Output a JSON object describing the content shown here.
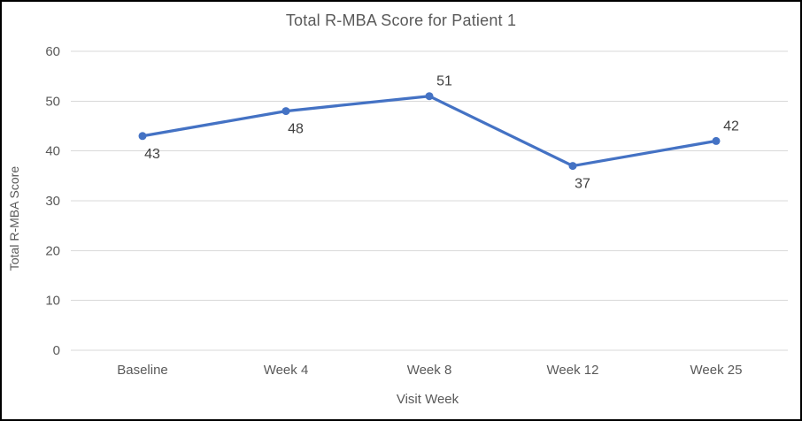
{
  "chart_data": {
    "type": "line",
    "title": "Total R-MBA Score for Patient 1",
    "xlabel": "Visit Week",
    "ylabel": "Total R-MBA Score",
    "categories": [
      "Baseline",
      "Week 4",
      "Week 8",
      "Week 12",
      "Week 25"
    ],
    "series": [
      {
        "name": "Total R-MBA Score",
        "values": [
          43,
          48,
          51,
          37,
          42
        ]
      }
    ],
    "data_labels": [
      43,
      48,
      51,
      37,
      42
    ],
    "label_placements": [
      "below",
      "below",
      "above",
      "below",
      "above"
    ],
    "ylim": [
      0,
      60
    ],
    "yticks": [
      0,
      10,
      20,
      30,
      40,
      50,
      60
    ],
    "grid": "horizontal",
    "legend": "none",
    "marker": "circle",
    "colors": {
      "line": "#4472C4",
      "marker": "#4472C4",
      "gridline": "#D9D9D9",
      "axis_text": "#595959",
      "title_text": "#595959",
      "data_label": "#404040",
      "background": "#FFFFFF",
      "border": "#000000"
    }
  }
}
